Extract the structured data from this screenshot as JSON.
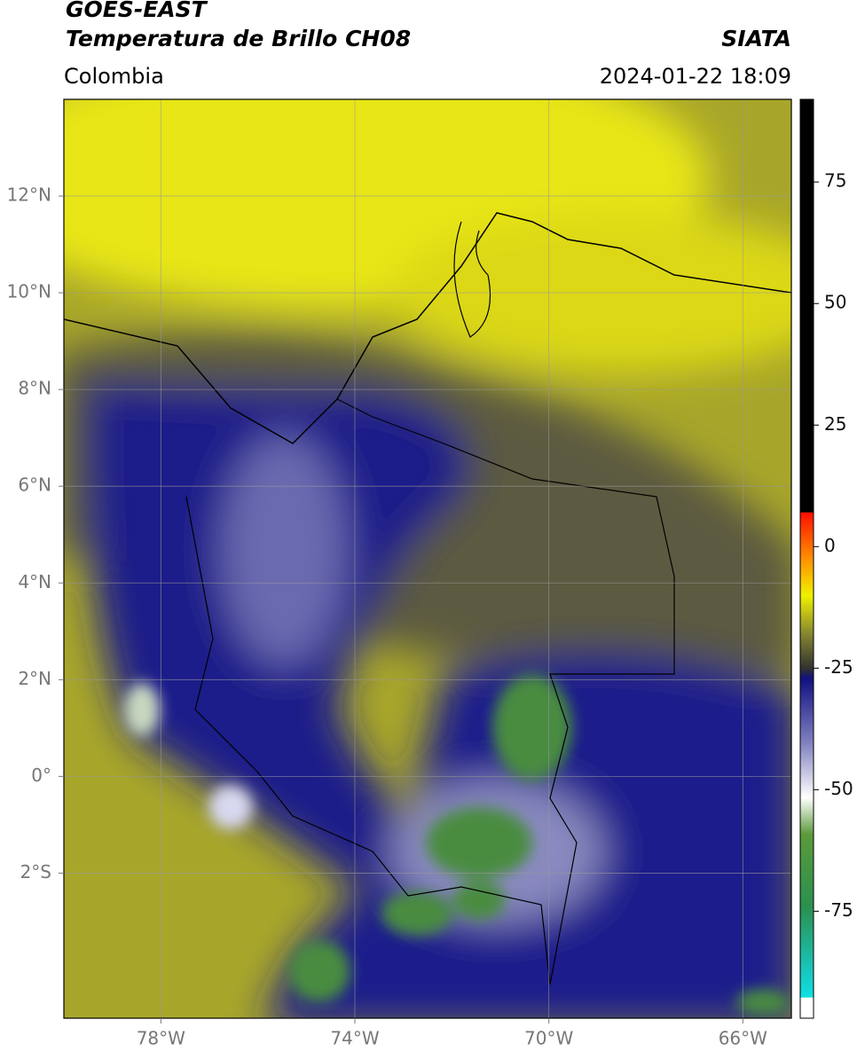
{
  "header": {
    "source": "GOES-EAST",
    "title": "Temperatura de Brillo CH08",
    "region": "Colombia",
    "agency": "SIATA",
    "datetime": "2024-01-22 18:09"
  },
  "map": {
    "lonlim": [
      -80,
      -65
    ],
    "latlim": [
      -5,
      14
    ],
    "lon_ticks": [
      {
        "value": -78,
        "label": "78°W"
      },
      {
        "value": -74,
        "label": "74°W"
      },
      {
        "value": -70,
        "label": "70°W"
      },
      {
        "value": -66,
        "label": "66°W"
      }
    ],
    "lat_ticks": [
      {
        "value": 12,
        "label": "12°N"
      },
      {
        "value": 10,
        "label": "10°N"
      },
      {
        "value": 8,
        "label": "8°N"
      },
      {
        "value": 6,
        "label": "6°N"
      },
      {
        "value": 4,
        "label": "4°N"
      },
      {
        "value": 2,
        "label": "2°N"
      },
      {
        "value": 0,
        "label": "0°"
      },
      {
        "value": -2,
        "label": "2°S"
      }
    ],
    "grid": true
  },
  "colorbar": {
    "lim": [
      -97,
      92
    ],
    "ticks": [
      75,
      50,
      25,
      0,
      -25,
      -50,
      -75
    ]
  }
}
